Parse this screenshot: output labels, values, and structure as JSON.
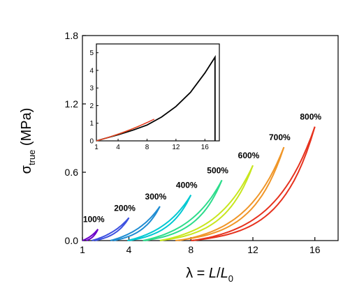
{
  "chart_data": [
    {
      "type": "line",
      "xlabel": "λ = L/L0",
      "ylabel": "σtrue (MPa)",
      "xlim": [
        1,
        17.5
      ],
      "ylim": [
        0,
        1.8
      ],
      "x_ticks": [
        "1",
        "4",
        "8",
        "12",
        "16"
      ],
      "y_ticks": [
        "0.0",
        "0.6",
        "1.2",
        "1.8"
      ],
      "grid": false,
      "series": [
        {
          "name": "100%",
          "color": "#6a00c8",
          "x": [
            1.0,
            2.0
          ],
          "load_end": 0.1,
          "unload_start": 1.25
        },
        {
          "name": "200%",
          "color": "#3c50e0",
          "x": [
            1.6,
            4.0
          ],
          "load_end": 0.2,
          "unload_start": 1.8
        },
        {
          "name": "300%",
          "color": "#1e8cd2",
          "x": [
            2.8,
            6.0
          ],
          "load_end": 0.3,
          "unload_start": 3.0
        },
        {
          "name": "400%",
          "color": "#00c8d2",
          "x": [
            3.9,
            8.0
          ],
          "load_end": 0.4,
          "unload_start": 4.0
        },
        {
          "name": "500%",
          "color": "#2ddc8c",
          "x": [
            4.9,
            10.0
          ],
          "load_end": 0.53,
          "unload_start": 5.0
        },
        {
          "name": "600%",
          "color": "#c8e61e",
          "x": [
            6.0,
            12.0
          ],
          "load_end": 0.66,
          "unload_start": 6.0
        },
        {
          "name": "700%",
          "color": "#f09628",
          "x": [
            7.2,
            14.0
          ],
          "load_end": 0.82,
          "unload_start": 7.0
        },
        {
          "name": "800%",
          "color": "#e6321e",
          "x": [
            8.1,
            16.0
          ],
          "load_end": 1.0,
          "unload_start": 8.0
        }
      ]
    },
    {
      "type": "line",
      "inset": true,
      "xlim": [
        1,
        18
      ],
      "ylim": [
        0,
        5.5
      ],
      "x_ticks": [
        "1",
        "4",
        "8",
        "12",
        "16"
      ],
      "y_ticks": [
        "0",
        "1",
        "2",
        "3",
        "4",
        "5"
      ],
      "series": [
        {
          "color": "#000000",
          "x": [
            1,
            2,
            4,
            6,
            8,
            10,
            12,
            14,
            16,
            17.4
          ],
          "y": [
            0,
            0.12,
            0.35,
            0.6,
            0.9,
            1.35,
            1.95,
            2.75,
            3.85,
            4.75
          ],
          "drop_to": 0
        }
      ],
      "overlay_colors": [
        "#6a00c8",
        "#3c50e0",
        "#1e8cd2",
        "#00c8d2",
        "#2ddc8c",
        "#c8e61e",
        "#f09628",
        "#e6321e"
      ]
    }
  ]
}
